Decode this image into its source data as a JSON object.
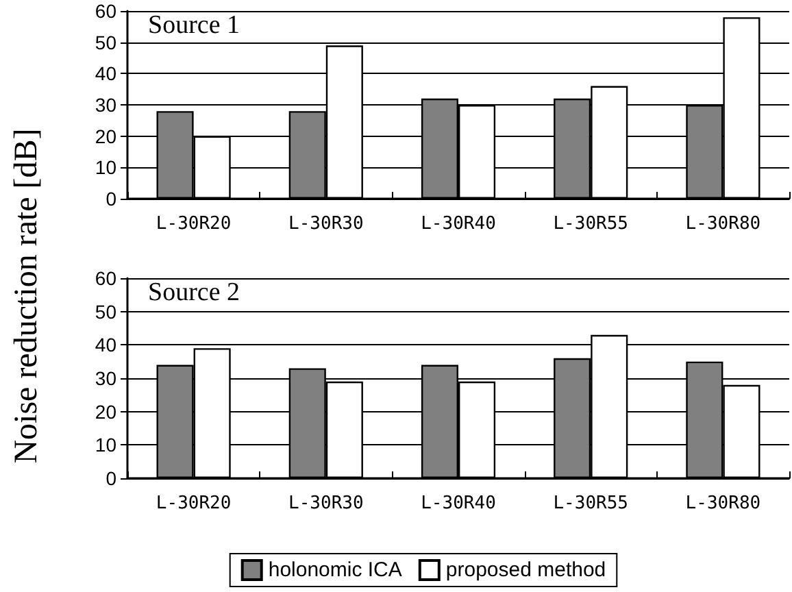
{
  "chart_data": [
    {
      "type": "bar",
      "title": "Source 1",
      "ylabel": "Noise reduction rate [dB]",
      "categories": [
        "L-30R20",
        "L-30R30",
        "L-30R40",
        "L-30R55",
        "L-30R80"
      ],
      "series": [
        {
          "color": "#808080",
          "values": [
            28,
            28,
            32,
            32,
            30
          ]
        },
        {
          "color": "#ffffff",
          "values": [
            20,
            49,
            30,
            36,
            58
          ]
        }
      ],
      "ylim": [
        0,
        60
      ],
      "yticks": [
        0,
        10,
        20,
        30,
        40,
        50,
        60
      ],
      "grid": "y",
      "legend": false
    },
    {
      "type": "bar",
      "title": "Source 2",
      "categories": [
        "L-30R20",
        "L-30R30",
        "L-30R40",
        "L-30R55",
        "L-30R80"
      ],
      "series": [
        {
          "name": "holonomic ICA",
          "color": "#808080",
          "values": [
            34,
            33,
            34,
            36,
            35
          ]
        },
        {
          "name": "proposed method",
          "color": "#ffffff",
          "values": [
            39,
            29,
            29,
            43,
            28
          ]
        }
      ],
      "ylim": [
        0,
        60
      ],
      "yticks": [
        0,
        10,
        20,
        30,
        40,
        50,
        60
      ],
      "grid": "y",
      "legend": "bottom"
    }
  ]
}
